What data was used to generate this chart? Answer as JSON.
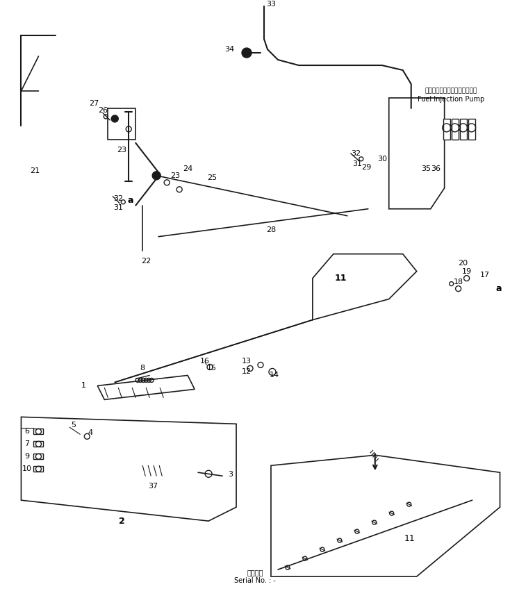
{
  "bg_color": "#ffffff",
  "line_color": "#1a1a1a",
  "title_bottom": "適用号機\nSerial No. : -",
  "fuel_injection_label_jp": "フェルインジェクションポンプ",
  "fuel_injection_label_en": "Fuel Injection Pump",
  "figsize": [
    7.34,
    8.61
  ],
  "dpi": 100
}
